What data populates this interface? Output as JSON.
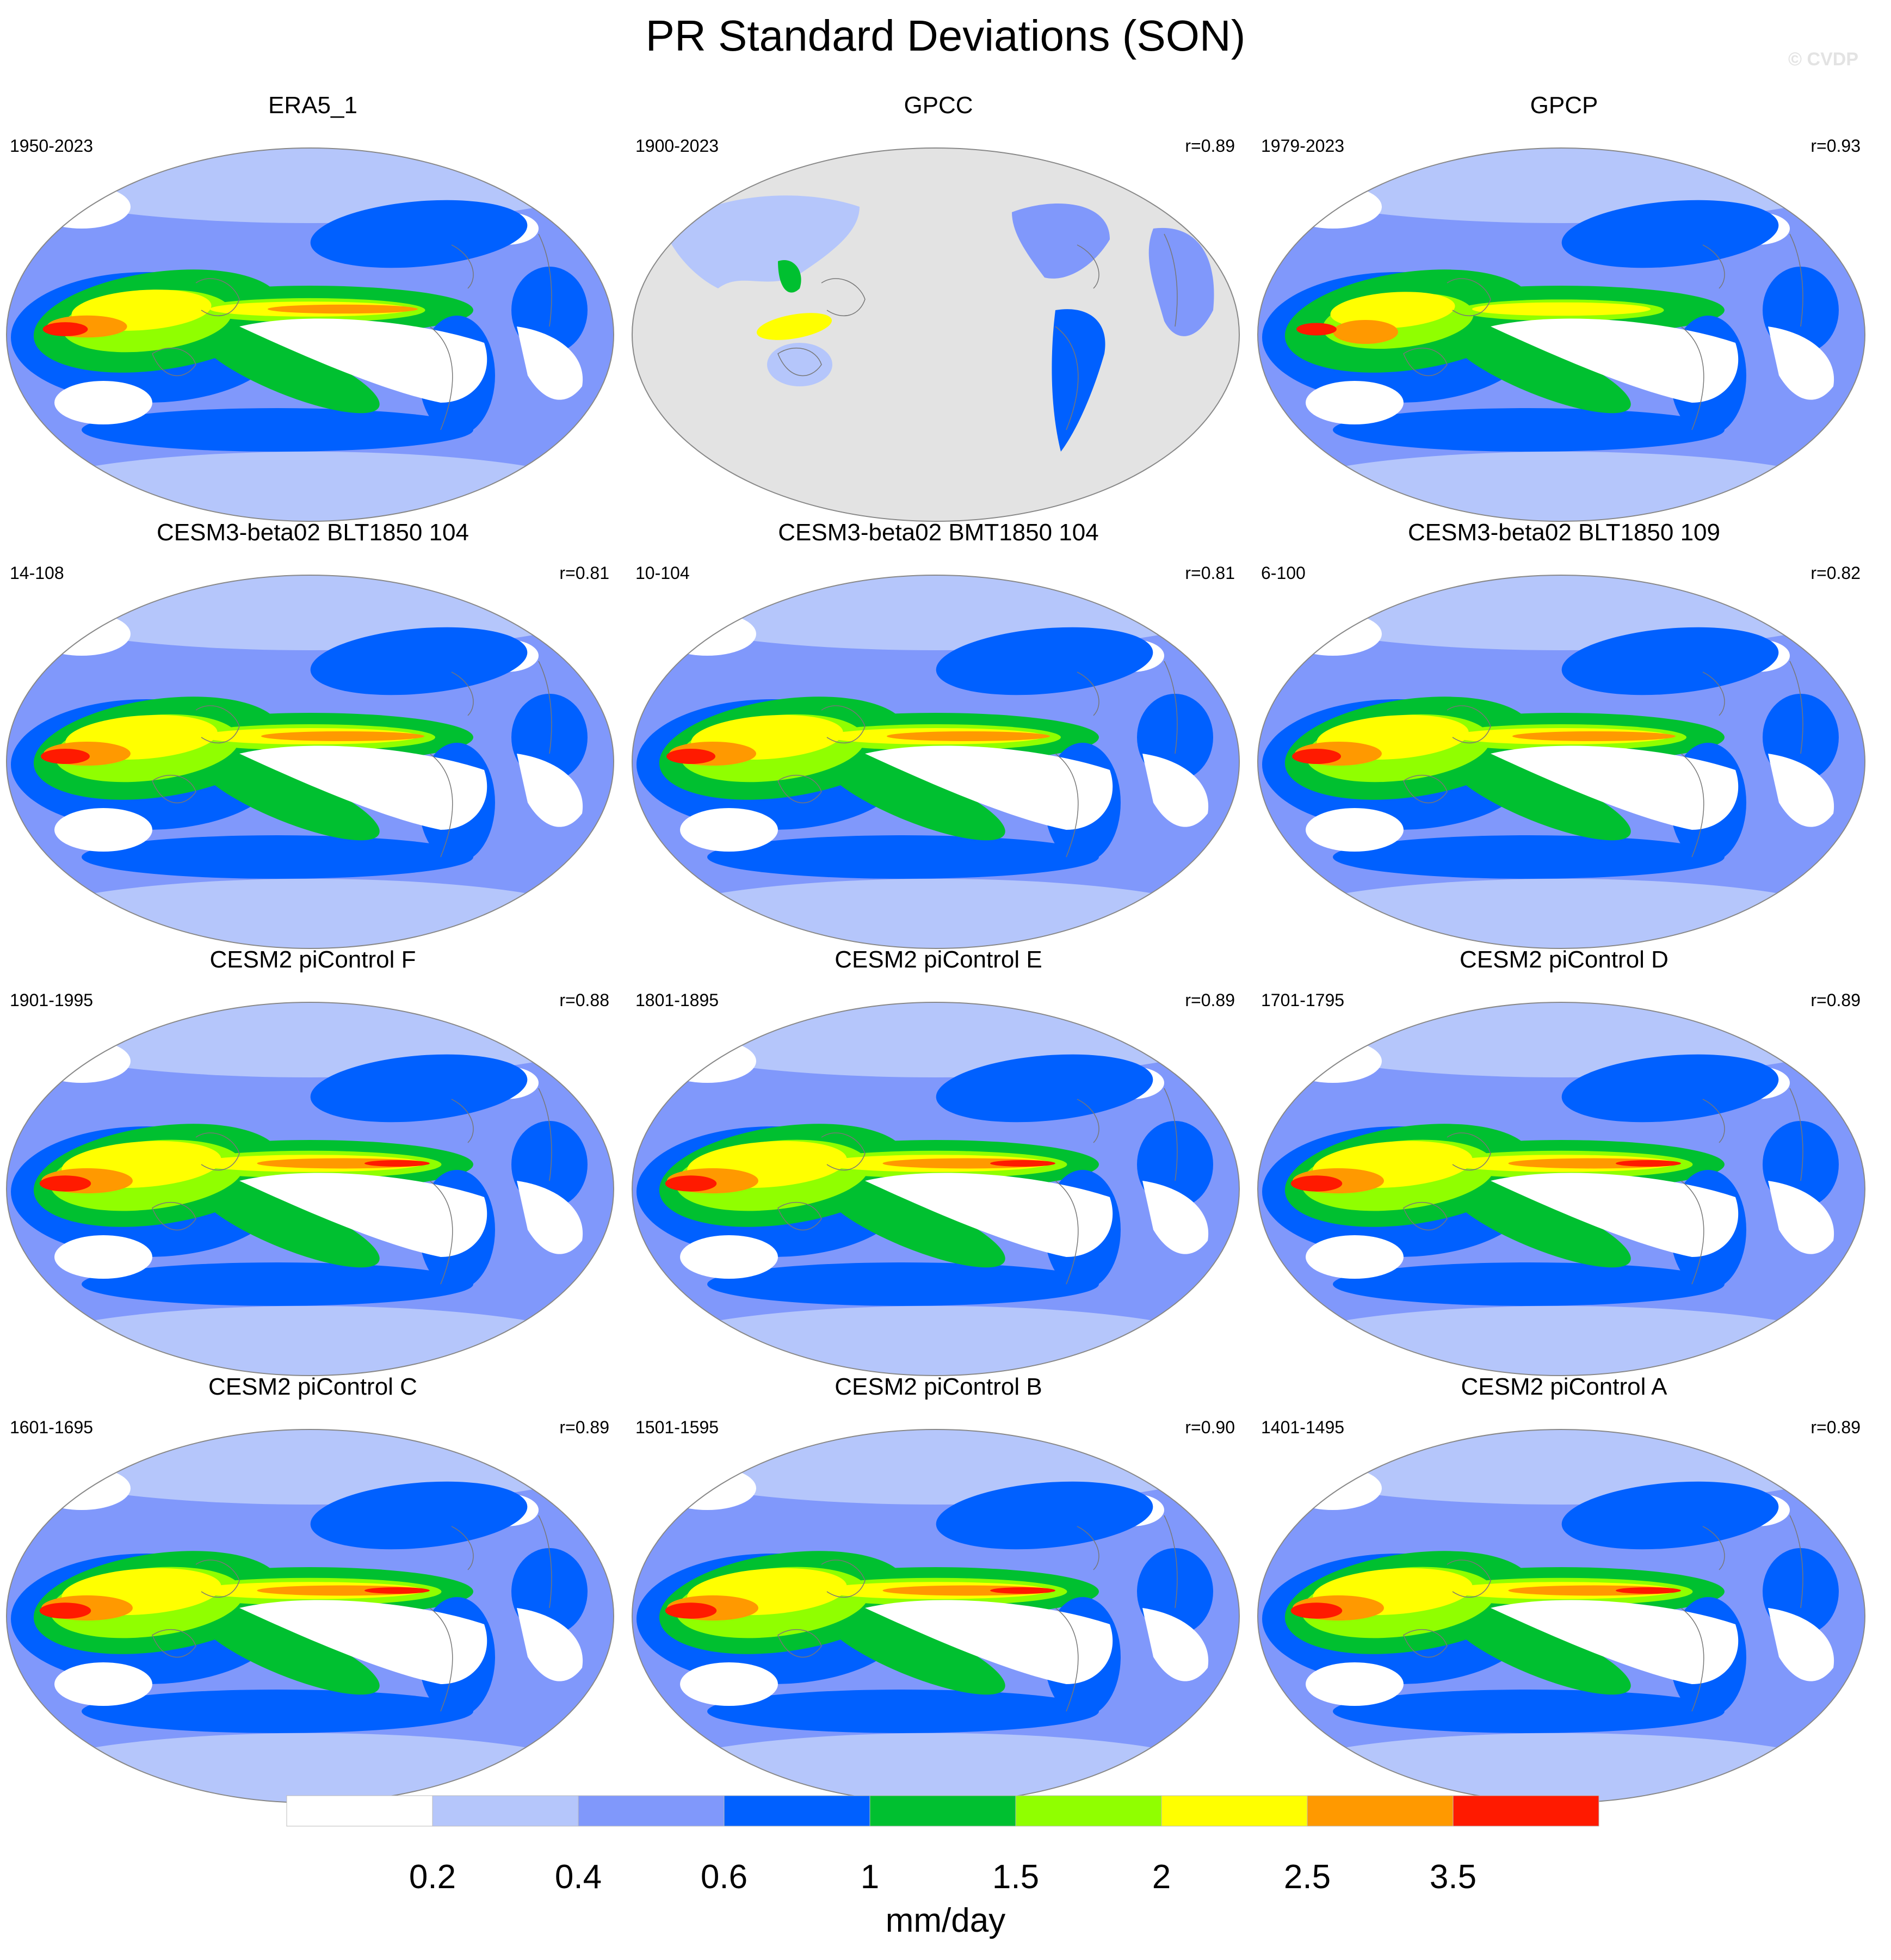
{
  "title": "PR Standard Deviations (SON)",
  "watermark": "© CVDP",
  "colorbar": {
    "units": "mm/day",
    "labels": [
      "0.2",
      "0.4",
      "0.6",
      "1",
      "1.5",
      "2",
      "2.5",
      "3.5"
    ],
    "colors": [
      "#ffffff",
      "#b5c6fb",
      "#8098fb",
      "#0060ff",
      "#00c030",
      "#90ff00",
      "#ffff00",
      "#ff9900",
      "#ff1a00"
    ]
  },
  "land_fill_color": "#e3e3e3",
  "chart_data": [
    {
      "type": "heatmap",
      "title": "ERA5_1",
      "period": "1950-2023",
      "correlation": "",
      "variant": "era5"
    },
    {
      "type": "heatmap",
      "title": "GPCC",
      "period": "1900-2023",
      "correlation": "r=0.89",
      "variant": "gpcc"
    },
    {
      "type": "heatmap",
      "title": "GPCP",
      "period": "1979-2023",
      "correlation": "r=0.93",
      "variant": "gpcp"
    },
    {
      "type": "heatmap",
      "title": "CESM3-beta02 BLT1850 104",
      "period": "14-108",
      "correlation": "r=0.81",
      "variant": "cesm3"
    },
    {
      "type": "heatmap",
      "title": "CESM3-beta02 BMT1850 104",
      "period": "10-104",
      "correlation": "r=0.81",
      "variant": "cesm3"
    },
    {
      "type": "heatmap",
      "title": "CESM3-beta02 BLT1850 109",
      "period": "6-100",
      "correlation": "r=0.82",
      "variant": "cesm3"
    },
    {
      "type": "heatmap",
      "title": "CESM2 piControl F",
      "period": "1901-1995",
      "correlation": "r=0.88",
      "variant": "cesm2"
    },
    {
      "type": "heatmap",
      "title": "CESM2 piControl E",
      "period": "1801-1895",
      "correlation": "r=0.89",
      "variant": "cesm2"
    },
    {
      "type": "heatmap",
      "title": "CESM2 piControl D",
      "period": "1701-1795",
      "correlation": "r=0.89",
      "variant": "cesm2"
    },
    {
      "type": "heatmap",
      "title": "CESM2 piControl C",
      "period": "1601-1695",
      "correlation": "r=0.89",
      "variant": "cesm2"
    },
    {
      "type": "heatmap",
      "title": "CESM2 piControl B",
      "period": "1501-1595",
      "correlation": "r=0.90",
      "variant": "cesm2"
    },
    {
      "type": "heatmap",
      "title": "CESM2 piControl A",
      "period": "1401-1495",
      "correlation": "r=0.89",
      "variant": "cesm2"
    }
  ]
}
